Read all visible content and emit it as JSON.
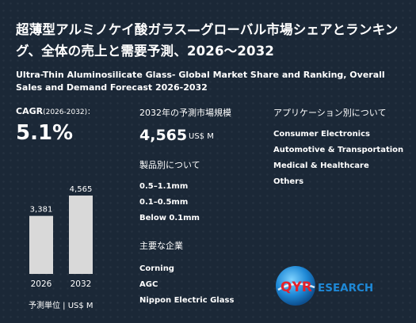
{
  "title_jp": "超薄型アルミノケイ酸ガラス—グローバル市場シェアとランキング、全体の売上と需要予測、2026〜2032",
  "title_en": "Ultra-Thin Aluminosilicate Glass- Global Market Share and Ranking, Overall Sales and Demand Forecast 2026-2032",
  "cagr": {
    "label": "CAGR",
    "period": "(2026-2032)：",
    "value": "5.1%"
  },
  "market": {
    "label": "2032年の予測市場規模",
    "value": "4,565",
    "unit": "US$ M"
  },
  "products": {
    "label": "製品別について",
    "items": [
      "0.5–1.1mm",
      "0.1–0.5mm",
      "Below 0.1mm"
    ]
  },
  "companies": {
    "label": "主要な企業",
    "items": [
      "Corning",
      "AGC",
      "Nippon Electric Glass"
    ]
  },
  "applications": {
    "label": "アプリケーション別について",
    "items": [
      "Consumer Electronics",
      "Automotive & Transportation",
      "Medical & Healthcare",
      "Others"
    ]
  },
  "chart_data": {
    "type": "bar",
    "categories": [
      "2026",
      "2032"
    ],
    "values": [
      3381,
      4565
    ],
    "value_labels": [
      "3,381",
      "4,565"
    ],
    "bar_color": "#d9d9d9"
  },
  "unit_label": "予測単位 | US$ M",
  "logo": {
    "text_a": "QYR",
    "text_b": "ESEARCH",
    "watermark": "QYResearch"
  }
}
